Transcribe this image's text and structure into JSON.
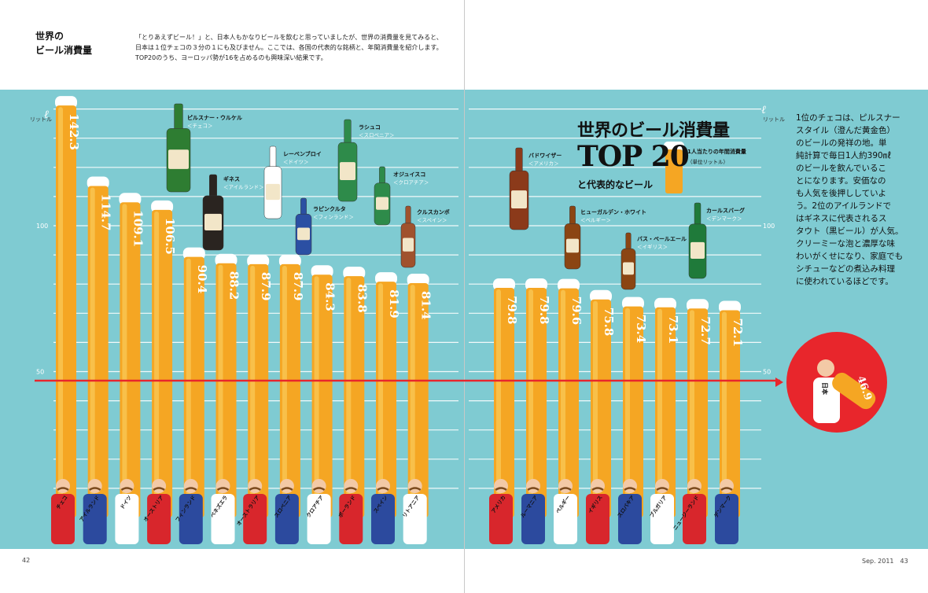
{
  "header": {
    "title_lines": [
      "世界の",
      "ビール消費量"
    ],
    "intro_lines": [
      "「とりあえずビール！」と、日本人もかなりビールを飲むと思っていましたが、世界の消費量を見てみると、",
      "日本は１位チェコの３分の１にも及びません。ここでは、各国の代表的な銘柄と、年間消費量を紹介します。",
      "TOP20のうち、ヨーロッパ勢が16を占めるのも興味深い結果です。"
    ]
  },
  "title_block": {
    "main": "世界のビール消費量",
    "top": "TOP 20",
    "sub": "と代表的なビール",
    "note": "1人当たりの年間消費量",
    "unit_note": "（単位リットル）"
  },
  "side_text_lines": [
    "1位のチェコは、ピルスナー",
    "スタイル（澄んだ黄金色）",
    "のビールの発祥の地。単",
    "純計算で毎日1人約390㎖",
    "のビールを飲んでいるこ",
    "とになります。安価なの",
    "も人気を後押ししていよ",
    "う。2位のアイルランドで",
    "はギネスに代表されるス",
    "タウト（黒ビール）が人気。",
    "クリーミーな泡と濃厚な味",
    "わいがくせになり、家庭でも",
    "シチューなどの煮込み料理",
    "に使われているほどです。"
  ],
  "page_left": "42",
  "page_right": "Sep. 2011　43",
  "colors": {
    "panel": "#7fcbd2",
    "beer": "#f5a623",
    "beer_light": "#f8c04a",
    "foam": "#ffffff",
    "reference_line": "#e8262c",
    "japan_badge": "#e8262c",
    "gridline": "#ffffff"
  },
  "chart_data": {
    "type": "bar",
    "ylabel_symbol": "ℓ",
    "ylabel": "リットル",
    "y_ticks": [
      50,
      100
    ],
    "ylim": [
      0,
      150
    ],
    "grid": true,
    "categories": [
      "チェコ",
      "アイルランド",
      "ドイツ",
      "オーストリア",
      "フィンランド",
      "ベネズエラ",
      "オーストラリア",
      "スロベニア",
      "クロアチア",
      "ポーランド",
      "スペイン",
      "リトアニア",
      "アメリカ",
      "ルーマニア",
      "ベルギー",
      "イギリス",
      "スロバキア",
      "ブルガリア",
      "ニュージーランド",
      "デンマーク"
    ],
    "values": [
      142.3,
      114.7,
      109.1,
      106.5,
      90.4,
      88.2,
      87.9,
      87.9,
      84.3,
      83.8,
      81.9,
      81.4,
      79.8,
      79.8,
      79.6,
      75.8,
      73.4,
      73.1,
      72.7,
      72.1
    ],
    "value_labels": [
      "142.3",
      "114.7",
      "109.1",
      "106.5",
      "90.4",
      "88.2",
      "87.9",
      "87.9",
      "84.3",
      "83.8",
      "81.9",
      "81.4",
      "79.8",
      "79.8",
      "79.6",
      "75.8",
      "73.4",
      "73.1",
      "72.7",
      "72.1"
    ],
    "reference": {
      "country": "日本",
      "value": 46.9,
      "label": "46.9"
    },
    "annotations": [
      {
        "name": "ピルスナー・ウルケル",
        "country": "＜チェコ＞"
      },
      {
        "name": "ギネス",
        "country": "＜アイルランド＞"
      },
      {
        "name": "レーベンブロイ",
        "country": "＜ドイツ＞"
      },
      {
        "name": "ラピンクルタ",
        "country": "＜フィンランド＞"
      },
      {
        "name": "ラシュコ",
        "country": "＜スロベニア＞"
      },
      {
        "name": "オジュイスコ",
        "country": "＜クロアチア＞"
      },
      {
        "name": "クルスカンポ",
        "country": "＜スペイン＞"
      },
      {
        "name": "バドワイザー",
        "country": "＜アメリカ＞"
      },
      {
        "name": "ヒューガルデン・ホワイト",
        "country": "＜ベルギー＞"
      },
      {
        "name": "バス・ペールエール",
        "country": "＜イギリス＞"
      },
      {
        "name": "カールスバーグ",
        "country": "＜デンマーク＞"
      }
    ]
  }
}
